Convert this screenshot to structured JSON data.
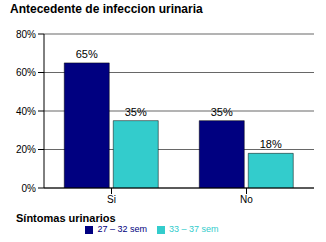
{
  "chart_data": {
    "type": "bar",
    "title": "Antecedente de infeccion urinaria",
    "x_label": "Síntomas urinarios",
    "categories": [
      "Si",
      "No"
    ],
    "series": [
      {
        "name": "27 – 32 sem",
        "color": "#000080",
        "values": [
          65,
          35
        ],
        "value_labels": [
          "65%",
          "35%"
        ]
      },
      {
        "name": "33 – 37 sem",
        "color": "#33cccc",
        "values": [
          35,
          18
        ],
        "value_labels": [
          "35%",
          "18%"
        ]
      }
    ],
    "ylim": [
      0,
      80
    ],
    "yticks": [
      {
        "value": 0,
        "label": "0%"
      },
      {
        "value": 20,
        "label": "20%"
      },
      {
        "value": 40,
        "label": "40%"
      },
      {
        "value": 60,
        "label": "60%"
      },
      {
        "value": 80,
        "label": "80%"
      }
    ],
    "grid": true,
    "legend": "bottom",
    "data_labels": true
  }
}
